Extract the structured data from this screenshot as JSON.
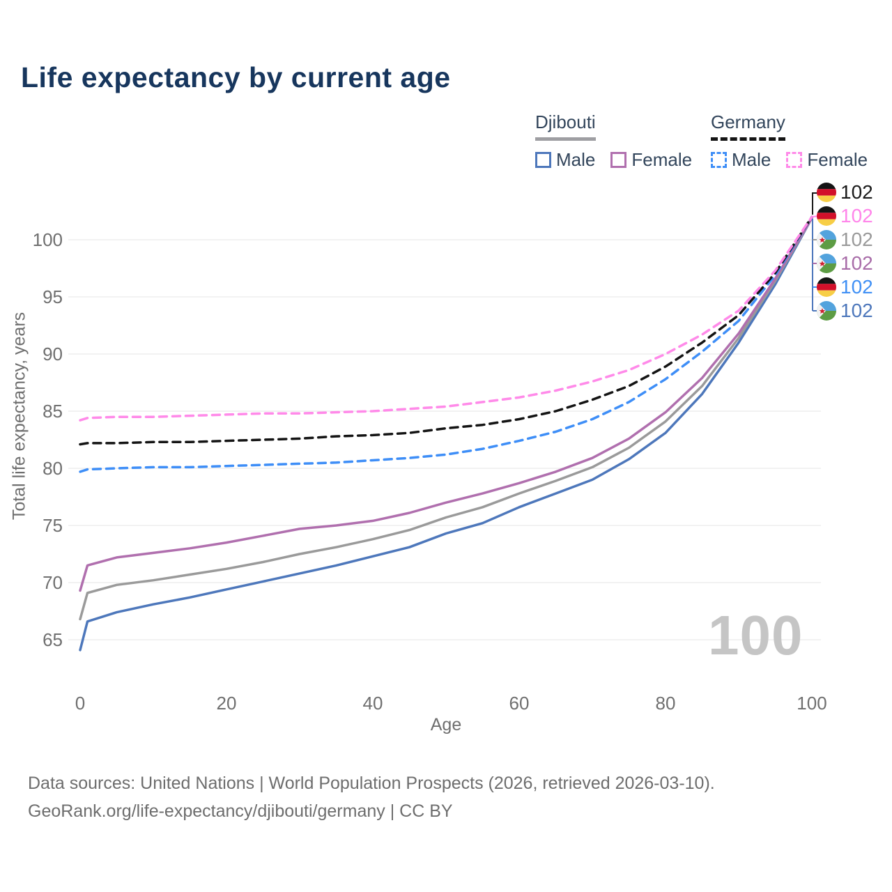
{
  "title": "Life expectancy by current age",
  "legend": {
    "groups": [
      {
        "country": "Djibouti",
        "line_style": "solid",
        "underline_color": "#9e9ea2",
        "items": [
          {
            "label": "Male",
            "color": "#4d77bb"
          },
          {
            "label": "Female",
            "color": "#b06fae"
          }
        ]
      },
      {
        "country": "Germany",
        "line_style": "dashed",
        "underline_color": "#141414",
        "items": [
          {
            "label": "Male",
            "color": "#3e8ef7"
          },
          {
            "label": "Female",
            "color": "#ff8ae9"
          }
        ]
      }
    ]
  },
  "axes": {
    "x": {
      "label": "Age",
      "ticks": [
        0,
        20,
        40,
        60,
        80,
        100
      ]
    },
    "y": {
      "label": "Total life expectancy, years",
      "ticks": [
        65,
        70,
        75,
        80,
        85,
        90,
        95,
        100
      ]
    }
  },
  "watermark": "100",
  "end_labels": [
    {
      "flag": "germany",
      "series": "Germany Both sexes",
      "value": "102",
      "color": "#1a1a1a"
    },
    {
      "flag": "germany",
      "series": "Germany Female",
      "value": "102",
      "color": "#ff85ea"
    },
    {
      "flag": "djibouti",
      "series": "Djibouti Both sexes",
      "value": "102",
      "color": "#9a9a9a"
    },
    {
      "flag": "djibouti",
      "series": "Djibouti Female",
      "value": "102",
      "color": "#a86ca8"
    },
    {
      "flag": "germany",
      "series": "Germany Male",
      "value": "102",
      "color": "#4090f5"
    },
    {
      "flag": "djibouti",
      "series": "Djibouti Male",
      "value": "102",
      "color": "#4d77bb"
    }
  ],
  "footer": {
    "line1": "Data sources: United Nations | World Population Prospects (2026, retrieved 2026-03-10).",
    "line2": "GeoRank.org/life-expectancy/djibouti/germany | CC BY"
  },
  "chart_data": {
    "type": "line",
    "title": "Life expectancy by current age",
    "xlabel": "Age",
    "ylabel": "Total life expectancy, years",
    "xlim": [
      0,
      100
    ],
    "ylim": [
      63,
      103.5
    ],
    "grid": "horizontal",
    "legend_position": "top-right",
    "x": [
      0,
      1,
      5,
      10,
      15,
      20,
      25,
      30,
      35,
      40,
      45,
      50,
      55,
      60,
      65,
      70,
      75,
      80,
      85,
      90,
      95,
      100
    ],
    "series": [
      {
        "name": "Djibouti Male",
        "country": "Djibouti",
        "sex": "Male",
        "line": "solid",
        "color": "#4d77bb",
        "values": [
          64.1,
          66.6,
          67.4,
          68.1,
          68.7,
          69.4,
          70.1,
          70.8,
          71.5,
          72.3,
          73.1,
          74.3,
          75.2,
          76.6,
          77.8,
          79.0,
          80.8,
          83.1,
          86.5,
          91.0,
          96.1,
          101.9
        ]
      },
      {
        "name": "Djibouti Both sexes",
        "country": "Djibouti",
        "sex": "Both sexes",
        "line": "solid",
        "color": "#9a9a9a",
        "values": [
          66.8,
          69.1,
          69.8,
          70.2,
          70.7,
          71.2,
          71.8,
          72.5,
          73.1,
          73.8,
          74.6,
          75.7,
          76.6,
          77.8,
          78.9,
          80.1,
          81.8,
          84.1,
          87.2,
          91.4,
          96.4,
          101.9
        ]
      },
      {
        "name": "Djibouti Female",
        "country": "Djibouti",
        "sex": "Female",
        "line": "solid",
        "color": "#b06fae",
        "values": [
          69.3,
          71.5,
          72.2,
          72.6,
          73.0,
          73.5,
          74.1,
          74.7,
          75.0,
          75.4,
          76.1,
          77.0,
          77.8,
          78.7,
          79.7,
          80.9,
          82.6,
          84.9,
          87.9,
          91.8,
          96.6,
          101.9
        ]
      },
      {
        "name": "Germany Male",
        "country": "Germany",
        "sex": "Male",
        "line": "dashed",
        "color": "#3e8ef7",
        "values": [
          79.7,
          79.9,
          80.0,
          80.1,
          80.1,
          80.2,
          80.3,
          80.4,
          80.5,
          80.7,
          80.9,
          81.2,
          81.7,
          82.4,
          83.2,
          84.3,
          85.8,
          87.8,
          90.2,
          92.9,
          96.9,
          102.0
        ]
      },
      {
        "name": "Germany Both sexes",
        "country": "Germany",
        "sex": "Both sexes",
        "line": "dashed",
        "color": "#141414",
        "values": [
          82.1,
          82.2,
          82.2,
          82.3,
          82.3,
          82.4,
          82.5,
          82.6,
          82.8,
          82.9,
          83.1,
          83.5,
          83.8,
          84.3,
          85.0,
          86.0,
          87.2,
          88.9,
          91.0,
          93.4,
          97.1,
          102.0
        ]
      },
      {
        "name": "Germany Female",
        "country": "Germany",
        "sex": "Female",
        "line": "dashed",
        "color": "#ff8ae9",
        "values": [
          84.2,
          84.4,
          84.5,
          84.5,
          84.6,
          84.7,
          84.8,
          84.8,
          84.9,
          85.0,
          85.2,
          85.4,
          85.8,
          86.2,
          86.8,
          87.6,
          88.6,
          90.0,
          91.7,
          93.8,
          97.3,
          102.0
        ]
      }
    ]
  }
}
